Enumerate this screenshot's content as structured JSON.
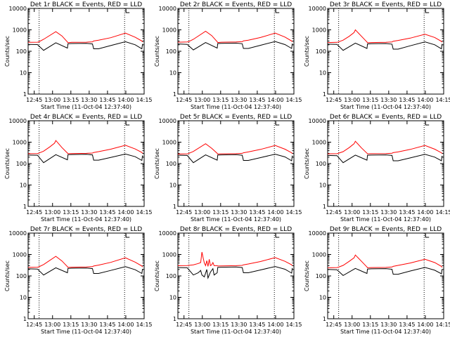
{
  "chart_data": {
    "type": "line",
    "x_tick_labels": [
      "12:45",
      "13:00",
      "13:15",
      "13:30",
      "13:45",
      "14:00",
      "14:15"
    ],
    "x_ticks_min": [
      -7.67,
      7.33,
      22.33,
      37.33,
      52.33,
      67.33,
      82.33
    ],
    "xlim_min": [
      -12.67,
      82.33
    ],
    "y_tick_labels": [
      "1",
      "10",
      "100",
      "1000",
      "10000"
    ],
    "ylim": [
      1,
      10000
    ],
    "ylog": true,
    "marker_lines_min": [
      -3.67,
      66.33
    ],
    "xlabel": "Start Time (11-Oct-04 12:37:40)",
    "ylabel": "Counts/sec",
    "colors": {
      "black_series": "#000000",
      "red_series": "#ff0000"
    },
    "panels": [
      {
        "title": "Det 1r BLACK = Events, RED = LLD",
        "series": [
          {
            "name": "BLACK = Events",
            "color": "#000000",
            "x": [
              -12.67,
              -5,
              0,
              10,
              19.5,
              20,
              23,
              35,
              40,
              41,
              45,
              55,
              67,
              75,
              80.5,
              81
            ],
            "y": [
              210,
              205,
              110,
              250,
              140,
              225,
              230,
              235,
              220,
              130,
              130,
              185,
              280,
              200,
              130,
              220
            ]
          },
          {
            "name": "RED = LLD",
            "color": "#ff0000",
            "x": [
              -12.67,
              -5,
              -4,
              0,
              10,
              15,
              19.5,
              20,
              23,
              35,
              40,
              41,
              45,
              55,
              67,
              75,
              80.5,
              81
            ],
            "y": [
              260,
              265,
              275,
              360,
              820,
              520,
              270,
              250,
              260,
              265,
              275,
              300,
              330,
              430,
              700,
              450,
              300,
              270
            ]
          }
        ]
      },
      {
        "title": "Det 2r BLACK = Events, RED = LLD",
        "series": [
          {
            "name": "BLACK = Events",
            "color": "#000000",
            "x": [
              -12.67,
              -5,
              0,
              10,
              19.5,
              20,
              23,
              35,
              40,
              41,
              45,
              55,
              67,
              75,
              80.5,
              81
            ],
            "y": [
              220,
              210,
              115,
              255,
              140,
              230,
              235,
              240,
              225,
              135,
              135,
              190,
              285,
              205,
              135,
              230
            ]
          },
          {
            "name": "RED = LLD",
            "color": "#ff0000",
            "x": [
              -12.67,
              -5,
              -4,
              0,
              10,
              15,
              19.5,
              20,
              23,
              35,
              40,
              41,
              45,
              55,
              67,
              75,
              80.5,
              81
            ],
            "y": [
              265,
              270,
              280,
              360,
              860,
              540,
              280,
              255,
              265,
              270,
              280,
              305,
              330,
              440,
              700,
              460,
              300,
              280
            ]
          }
        ]
      },
      {
        "title": "Det 3r BLACK = Events, RED = LLD",
        "series": [
          {
            "name": "BLACK = Events",
            "color": "#000000",
            "x": [
              -12.67,
              -5,
              0,
              10,
              19.5,
              20,
              23,
              35,
              40,
              41,
              45,
              55,
              67,
              75,
              80.5,
              81
            ],
            "y": [
              215,
              210,
              110,
              240,
              135,
              220,
              225,
              230,
              215,
              125,
              125,
              180,
              275,
              200,
              130,
              220
            ]
          },
          {
            "name": "RED = LLD",
            "color": "#ff0000",
            "x": [
              -12.67,
              -5,
              -4,
              0,
              5,
              9,
              10,
              15,
              19.5,
              20,
              23,
              35,
              40,
              41,
              45,
              55,
              67,
              75,
              80.5,
              81
            ],
            "y": [
              255,
              260,
              270,
              330,
              500,
              750,
              1000,
              500,
              270,
              250,
              255,
              260,
              270,
              295,
              320,
              410,
              620,
              440,
              290,
              265
            ]
          }
        ]
      },
      {
        "title": "Det 4r BLACK = Events, RED = LLD",
        "series": [
          {
            "name": "BLACK = Events",
            "color": "#000000",
            "x": [
              -12.67,
              -5,
              0,
              10,
              19.5,
              20,
              23,
              35,
              40,
              41,
              45,
              55,
              67,
              75,
              80.5,
              81
            ],
            "y": [
              250,
              245,
              110,
              260,
              150,
              260,
              265,
              270,
              255,
              145,
              145,
              195,
              280,
              210,
              140,
              240
            ]
          },
          {
            "name": "RED = LLD",
            "color": "#ff0000",
            "x": [
              -12.67,
              -5,
              -4,
              0,
              5,
              9,
              10,
              15,
              19.5,
              20,
              23,
              35,
              40,
              41,
              45,
              55,
              67,
              75,
              80.5,
              81
            ],
            "y": [
              290,
              295,
              305,
              380,
              600,
              900,
              1200,
              560,
              310,
              290,
              295,
              300,
              310,
              330,
              360,
              470,
              720,
              480,
              330,
              300
            ]
          }
        ]
      },
      {
        "title": "Det 5r BLACK = Events, RED = LLD",
        "series": [
          {
            "name": "BLACK = Events",
            "color": "#000000",
            "x": [
              -12.67,
              -5,
              0,
              10,
              19.5,
              20,
              23,
              35,
              40,
              41,
              45,
              55,
              67,
              75,
              80.5,
              81
            ],
            "y": [
              245,
              240,
              110,
              255,
              145,
              250,
              255,
              260,
              245,
              140,
              140,
              190,
              275,
              205,
              135,
              235
            ]
          },
          {
            "name": "RED = LLD",
            "color": "#ff0000",
            "x": [
              -12.67,
              -5,
              -4,
              0,
              10,
              15,
              19.5,
              20,
              23,
              35,
              40,
              41,
              45,
              55,
              67,
              75,
              80.5,
              81
            ],
            "y": [
              280,
              285,
              295,
              370,
              850,
              520,
              300,
              280,
              285,
              290,
              300,
              320,
              350,
              460,
              700,
              470,
              320,
              290
            ]
          }
        ]
      },
      {
        "title": "Det 6r BLACK = Events, RED = LLD",
        "series": [
          {
            "name": "BLACK = Events",
            "color": "#000000",
            "x": [
              -12.67,
              -5,
              0,
              10,
              19.5,
              20,
              23,
              35,
              40,
              41,
              45,
              55,
              67,
              75,
              80.5,
              81
            ],
            "y": [
              240,
              235,
              110,
              250,
              145,
              245,
              250,
              255,
              240,
              135,
              135,
              185,
              270,
              200,
              135,
              230
            ]
          },
          {
            "name": "RED = LLD",
            "color": "#ff0000",
            "x": [
              -12.67,
              -5,
              -4,
              0,
              5,
              9,
              10,
              15,
              19.5,
              20,
              23,
              35,
              40,
              41,
              45,
              55,
              67,
              75,
              80.5,
              81
            ],
            "y": [
              285,
              290,
              300,
              360,
              560,
              850,
              1100,
              540,
              305,
              285,
              290,
              295,
              305,
              325,
              350,
              460,
              700,
              470,
              320,
              295
            ]
          }
        ]
      },
      {
        "title": "Det 7r BLACK = Events, RED = LLD",
        "series": [
          {
            "name": "BLACK = Events",
            "color": "#000000",
            "x": [
              -12.67,
              -5,
              0,
              10,
              19.5,
              20,
              23,
              35,
              40,
              41,
              45,
              55,
              67,
              75,
              80.5,
              81
            ],
            "y": [
              215,
              210,
              110,
              240,
              140,
              225,
              230,
              235,
              220,
              130,
              130,
              180,
              270,
              195,
              130,
              215
            ]
          },
          {
            "name": "RED = LLD",
            "color": "#ff0000",
            "x": [
              -12.67,
              -5,
              -4,
              0,
              10,
              15,
              19.5,
              20,
              23,
              35,
              40,
              41,
              45,
              55,
              67,
              75,
              80.5,
              81
            ],
            "y": [
              250,
              255,
              265,
              340,
              820,
              500,
              270,
              250,
              255,
              260,
              270,
              290,
              320,
              430,
              700,
              440,
              290,
              260
            ]
          }
        ]
      },
      {
        "title": "Det 8r BLACK = Events, RED = LLD",
        "series": [
          {
            "name": "BLACK = Events",
            "color": "#000000",
            "x": [
              -12.67,
              -5,
              0,
              4,
              6,
              7,
              9,
              11,
              12,
              14,
              16,
              17,
              19.5,
              20,
              23,
              35,
              40,
              41,
              45,
              55,
              67,
              75,
              80.5,
              81
            ],
            "y": [
              245,
              240,
              110,
              140,
              180,
              110,
              90,
              200,
              80,
              150,
              220,
              110,
              140,
              250,
              255,
              260,
              245,
              140,
              140,
              190,
              275,
              205,
              135,
              235
            ]
          },
          {
            "name": "RED = LLD",
            "color": "#ff0000",
            "x": [
              -12.67,
              -5,
              -4,
              0,
              4,
              6,
              7,
              8,
              9,
              10,
              11,
              12,
              13,
              14,
              15,
              16,
              17,
              19.5,
              20,
              23,
              35,
              40,
              41,
              45,
              55,
              67,
              75,
              80.5,
              81
            ],
            "y": [
              300,
              305,
              310,
              330,
              380,
              420,
              1300,
              700,
              400,
              300,
              520,
              280,
              600,
              300,
              330,
              420,
              300,
              300,
              290,
              295,
              300,
              310,
              330,
              360,
              470,
              720,
              480,
              330,
              300
            ]
          }
        ]
      },
      {
        "title": "Det 9r BLACK = Events, RED = LLD",
        "series": [
          {
            "name": "BLACK = Events",
            "color": "#000000",
            "x": [
              -12.67,
              -5,
              0,
              10,
              19.5,
              20,
              23,
              35,
              40,
              41,
              45,
              55,
              67,
              75,
              80.5,
              81
            ],
            "y": [
              200,
              195,
              105,
              225,
              130,
              210,
              215,
              220,
              205,
              120,
              120,
              170,
              250,
              185,
              125,
              205
            ]
          },
          {
            "name": "RED = LLD",
            "color": "#ff0000",
            "x": [
              -12.67,
              -5,
              -4,
              0,
              5,
              9,
              10,
              15,
              19.5,
              20,
              23,
              35,
              40,
              41,
              45,
              55,
              67,
              75,
              80.5,
              81
            ],
            "y": [
              240,
              245,
              255,
              310,
              480,
              700,
              950,
              480,
              260,
              240,
              245,
              250,
              260,
              280,
              310,
              400,
              600,
              420,
              280,
              250
            ]
          }
        ]
      }
    ]
  }
}
